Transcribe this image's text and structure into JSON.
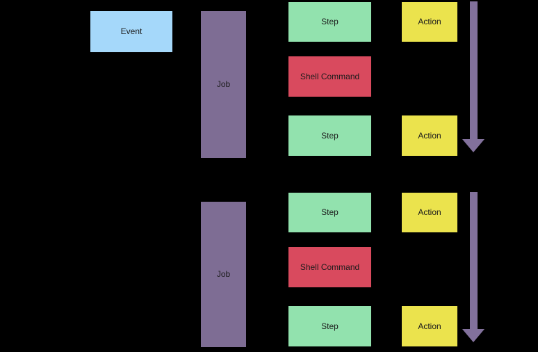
{
  "diagram": {
    "type": "flowchart",
    "description": "Event triggers jobs; each job runs steps (shell commands or actions) sequentially top to bottom"
  },
  "colors": {
    "background": "#000000",
    "event_fill": "#a5d8fa",
    "job_fill": "#7e6d94",
    "step_fill": "#92e2ae",
    "shell_fill": "#d94a5e",
    "action_fill": "#ebe34d",
    "arrow_fill": "#82719c",
    "text_color": "#1c1c1c"
  },
  "nodes": {
    "event": {
      "label": "Event"
    },
    "job_top": {
      "label": "Job"
    },
    "step_1": {
      "label": "Step"
    },
    "shell_command_1": {
      "label": "Shell Command"
    },
    "step_2": {
      "label": "Step"
    },
    "action_1": {
      "label": "Action"
    },
    "action_2": {
      "label": "Action"
    },
    "job_bottom": {
      "label": "Job"
    },
    "step_3": {
      "label": "Step"
    },
    "shell_command_2": {
      "label": "Shell Command"
    },
    "step_4": {
      "label": "Step"
    },
    "action_3": {
      "label": "Action"
    },
    "action_4": {
      "label": "Action"
    }
  },
  "arrows": {
    "top": {
      "direction": "down"
    },
    "bottom": {
      "direction": "down"
    }
  }
}
